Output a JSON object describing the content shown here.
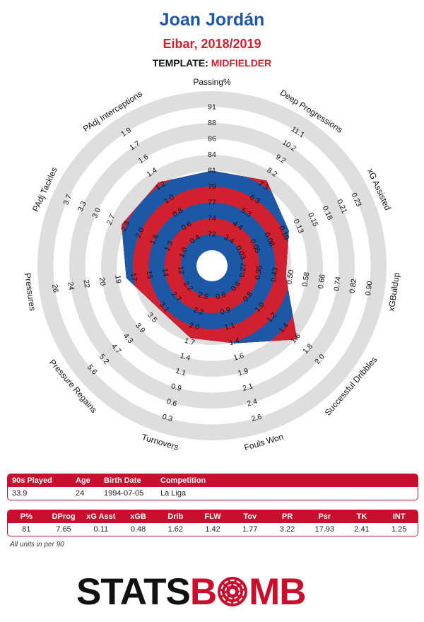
{
  "header": {
    "player": "Joan Jordán",
    "team_season": "Eibar, 2018/2019",
    "template_label": "TEMPLATE:",
    "template_value": "MIDFIELDER"
  },
  "chart_data": {
    "type": "radar",
    "rings": 10,
    "colors": {
      "outer_ring": "#dedede",
      "fill_a": "#d1202f",
      "fill_b": "#1d58a7"
    },
    "axes": [
      {
        "label": "Passing%",
        "ticks": [
          "72",
          "74",
          "77",
          "79",
          "81",
          "84",
          "86",
          "88",
          "91"
        ],
        "value": 81
      },
      {
        "label": "Deep Progressions",
        "ticks": [
          "3.4",
          "4.4",
          "5.3",
          "6.3",
          "7.3",
          "8.2",
          "9.2",
          "10.2",
          "11.1"
        ],
        "value": 7.65
      },
      {
        "label": "xG Assisted",
        "ticks": [
          "0.03",
          "0.05",
          "0.08",
          "0.10",
          "0.13",
          "0.15",
          "0.18",
          "0.21",
          "0.23"
        ],
        "value": 0.11
      },
      {
        "label": "xGBuildup",
        "ticks": [
          "0.27",
          "0.35",
          "0.43",
          "0.50",
          "0.58",
          "0.66",
          "0.74",
          "0.82",
          "0.90"
        ],
        "value": 0.48
      },
      {
        "label": "Successful Dribbles",
        "ticks": [
          "0.6",
          "0.8",
          "1.0",
          "1.2",
          "1.4",
          "1.6",
          "1.8",
          "2.0"
        ],
        "value": 1.62
      },
      {
        "label": "Fouls Won",
        "ticks": [
          "0.6",
          "0.9",
          "1.1",
          "1.4",
          "1.6",
          "1.9",
          "2.1",
          "2.4",
          "2.6"
        ],
        "value": 1.42
      },
      {
        "label": "Turnovers",
        "ticks": [
          "2.5",
          "2.2",
          "2.0",
          "1.7",
          "1.4",
          "1.1",
          "0.9",
          "0.6",
          "0.3"
        ],
        "value": 1.77
      },
      {
        "label": "Pressure Regains",
        "ticks": [
          "2.2",
          "2.7",
          "3.1",
          "3.5",
          "3.9",
          "4.3",
          "4.7",
          "5.2",
          "5.6"
        ],
        "value": 3.22
      },
      {
        "label": "Pressures",
        "ticks": [
          "12",
          "14",
          "15",
          "17",
          "19",
          "20",
          "22",
          "24",
          "26"
        ],
        "value": 17.93
      },
      {
        "label": "PAdj Tackles",
        "ticks": [
          "1.0",
          "1.3",
          "1.6",
          "2.0",
          "2.3",
          "2.7",
          "3.0",
          "3.3",
          "3.7"
        ],
        "value": 2.41
      },
      {
        "label": "PAdj Interceptions",
        "ticks": [
          "0.4",
          "0.6",
          "0.8",
          "1.0",
          "1.2",
          "1.4",
          "1.6",
          "1.7",
          "1.9"
        ],
        "value": 1.25
      }
    ]
  },
  "info_table": {
    "headers": [
      "90s Played",
      "Age",
      "Birth Date",
      "Competition"
    ],
    "values": [
      "33.9",
      "24",
      "1994-07-05",
      "La Liga"
    ]
  },
  "stats_table": {
    "headers": [
      "P%",
      "DProg",
      "xG Asst",
      "xGB",
      "Drib",
      "FLW",
      "Tov",
      "PR",
      "Psr",
      "TK",
      "INT"
    ],
    "values": [
      "81",
      "7.65",
      "0.11",
      "0.48",
      "1.62",
      "1.42",
      "1.77",
      "3.22",
      "17.93",
      "2.41",
      "1.25"
    ]
  },
  "footer": {
    "units_note": "All units in per 90",
    "logo_left": "STATS",
    "logo_right_a": "B",
    "logo_right_b": "MB"
  }
}
